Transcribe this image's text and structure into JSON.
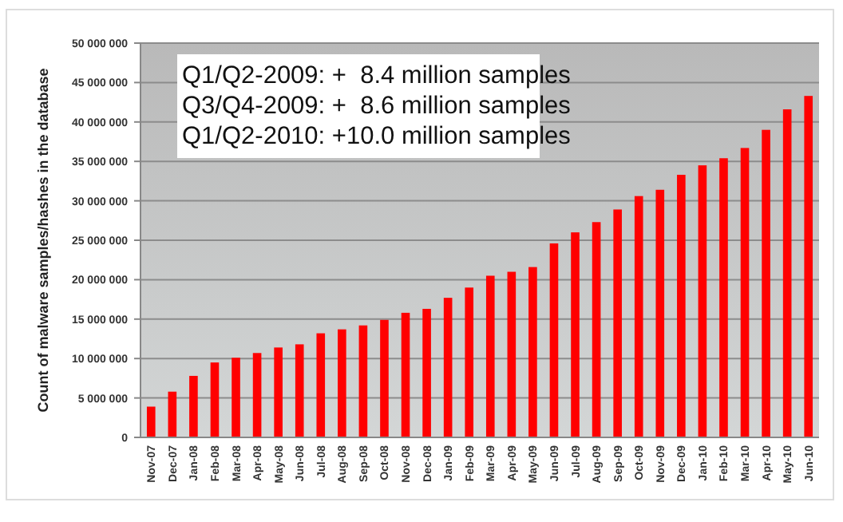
{
  "chart_data": {
    "type": "bar",
    "ylabel": "Count of malware samples/hashes in the database",
    "categories": [
      "Nov-07",
      "Dec-07",
      "Jan-08",
      "Feb-08",
      "Mar-08",
      "Apr-08",
      "May-08",
      "Jun-08",
      "Jul-08",
      "Aug-08",
      "Sep-08",
      "Oct-08",
      "Nov-08",
      "Dec-08",
      "Jan-09",
      "Feb-09",
      "Mar-09",
      "Apr-09",
      "May-09",
      "Jun-09",
      "Jul-09",
      "Aug-09",
      "Sep-09",
      "Oct-09",
      "Nov-09",
      "Dec-09",
      "Jan-10",
      "Feb-10",
      "Mar-10",
      "Apr-10",
      "May-10",
      "Jun-10"
    ],
    "values": [
      3900000,
      5800000,
      7800000,
      9500000,
      10100000,
      10700000,
      11400000,
      11800000,
      13200000,
      13700000,
      14200000,
      14900000,
      15800000,
      16300000,
      17700000,
      19000000,
      20500000,
      21000000,
      21600000,
      24600000,
      26000000,
      27300000,
      28900000,
      30600000,
      31400000,
      33300000,
      34500000,
      35400000,
      36700000,
      39000000,
      41600000,
      43300000
    ],
    "color": "#ff0000",
    "ylim": [
      0,
      50000000
    ],
    "yticks": [
      {
        "value": 0,
        "label": "0"
      },
      {
        "value": 5000000,
        "label": "5 000 000"
      },
      {
        "value": 10000000,
        "label": "10 000 000"
      },
      {
        "value": 15000000,
        "label": "15 000 000"
      },
      {
        "value": 20000000,
        "label": "20 000 000"
      },
      {
        "value": 25000000,
        "label": "25 000 000"
      },
      {
        "value": 30000000,
        "label": "30 000 000"
      },
      {
        "value": 35000000,
        "label": "35 000 000"
      },
      {
        "value": 40000000,
        "label": "40 000 000"
      },
      {
        "value": 45000000,
        "label": "45 000 000"
      },
      {
        "value": 50000000,
        "label": "50 000 000"
      }
    ],
    "grid": "y",
    "annotations": [
      "Q1/Q2-2009: +  8.4 million samples",
      "Q3/Q4-2009: +  8.6 million samples",
      "Q1/Q2-2010: +10.0 million samples"
    ]
  }
}
